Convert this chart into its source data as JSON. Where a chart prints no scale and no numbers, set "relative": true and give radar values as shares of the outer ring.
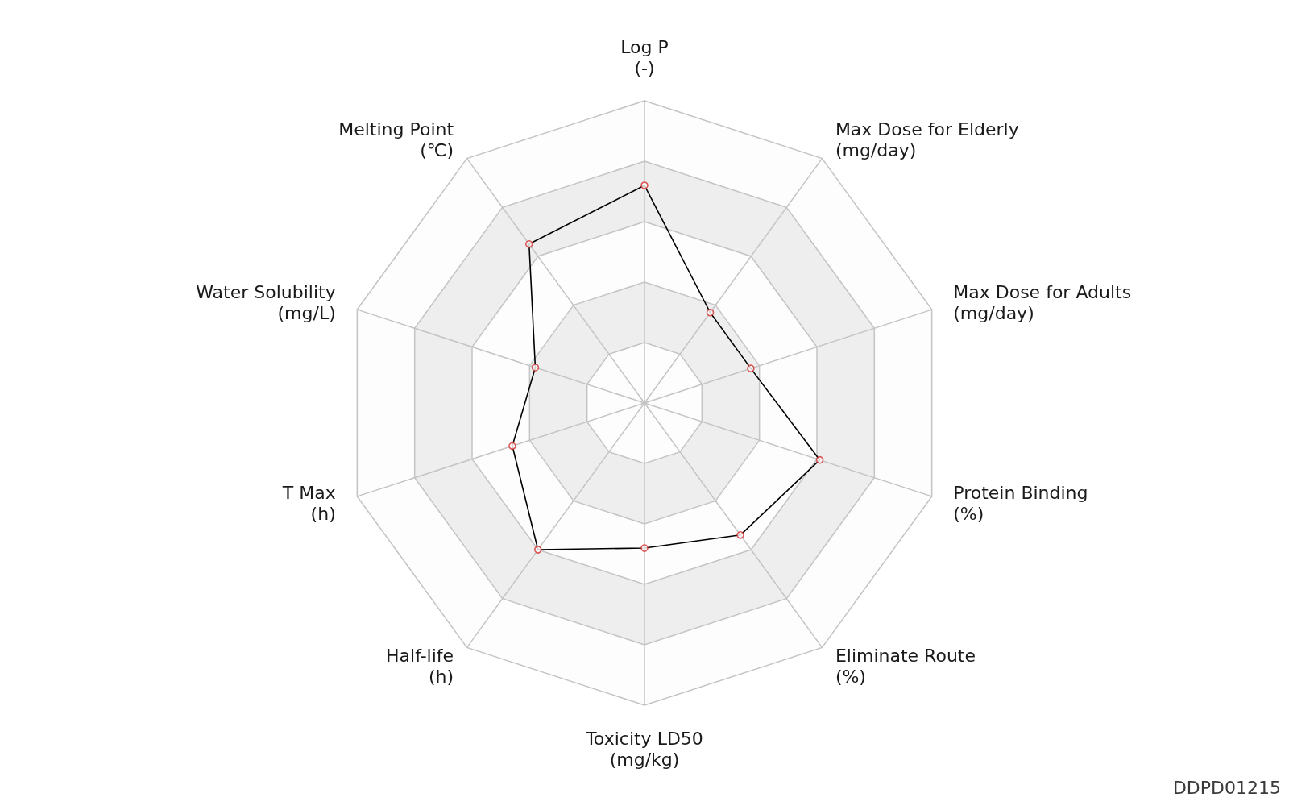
{
  "chart_data": {
    "type": "radar",
    "relative": true,
    "categories": [
      "Log P\n(-)",
      "Max Dose for Elderly\n(mg/day)",
      "Max Dose for Adults\n(mg/day)",
      "Protein Binding\n(%)",
      "Eliminate Route\n(%)",
      "Toxicity LD50\n(mg/kg)",
      "Half-life\n(h)",
      "T Max\n(h)",
      "Water Solubility\n(mg/L)",
      "Melting Point\n(℃)"
    ],
    "series": [
      {
        "color": "#000000",
        "colors": [
          "#d32f2f",
          "#d32f2f",
          "#d32f2f",
          "#d32f2f",
          "#d32f2f",
          "#d32f2f",
          "#d32f2f",
          "#d32f2f",
          "#d32f2f",
          "#d32f2f"
        ],
        "values": [
          0.72,
          0.37,
          0.37,
          0.61,
          0.54,
          0.48,
          0.6,
          0.46,
          0.38,
          0.65
        ]
      }
    ],
    "grid": true,
    "marker": "circle",
    "line_style": "solid",
    "annotations": [
      "DDPD01215"
    ]
  }
}
